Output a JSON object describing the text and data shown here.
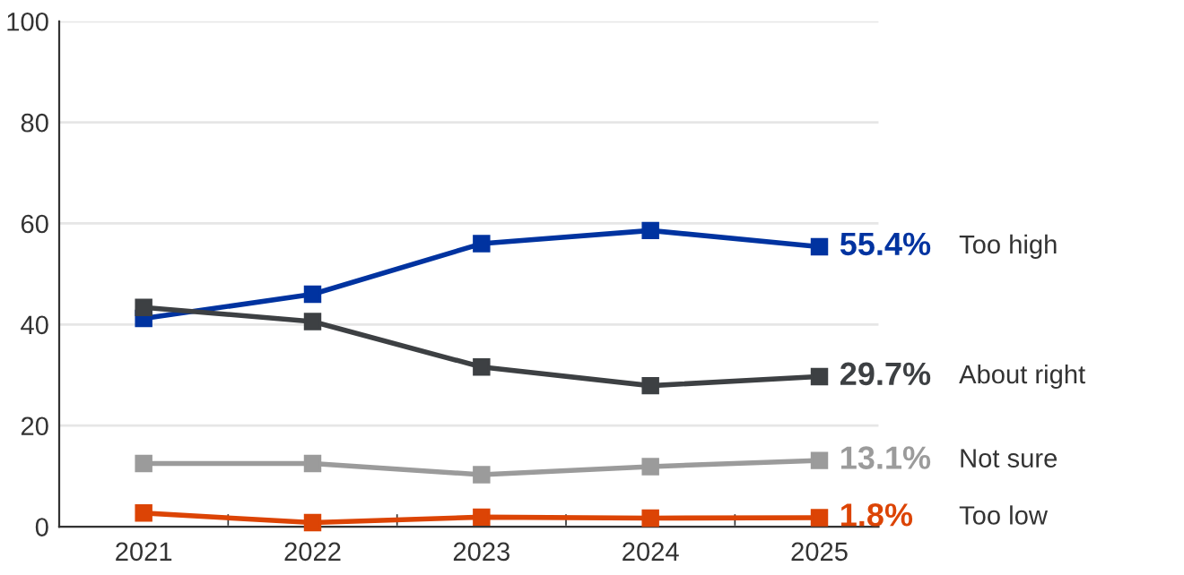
{
  "chart_data": {
    "type": "line",
    "categories": [
      "2021",
      "2022",
      "2023",
      "2024",
      "2025"
    ],
    "series": [
      {
        "name": "Too high",
        "color": "#0033a0",
        "values": [
          41.2,
          46.0,
          56.0,
          58.6,
          55.4
        ],
        "value_labels": [
          null,
          null,
          null,
          null,
          "55.4%"
        ]
      },
      {
        "name": "About right",
        "color": "#3d4043",
        "values": [
          43.4,
          40.6,
          31.6,
          27.9,
          29.7
        ],
        "value_labels": [
          null,
          null,
          null,
          null,
          "29.7%"
        ]
      },
      {
        "name": "Not sure",
        "color": "#9b9b9b",
        "values": [
          12.5,
          12.5,
          10.3,
          11.9,
          13.1
        ],
        "value_labels": [
          null,
          null,
          null,
          null,
          "13.1%"
        ]
      },
      {
        "name": "Too low",
        "color": "#dc4405",
        "values": [
          2.7,
          0.8,
          1.9,
          1.7,
          1.8
        ],
        "value_labels": [
          null,
          null,
          null,
          null,
          "1.8%"
        ]
      }
    ],
    "ylim": [
      0,
      100
    ],
    "yticks": [
      0,
      20,
      40,
      60,
      80,
      100
    ],
    "grid": "y",
    "marker": "square",
    "line_style": "solid",
    "legend": false
  }
}
